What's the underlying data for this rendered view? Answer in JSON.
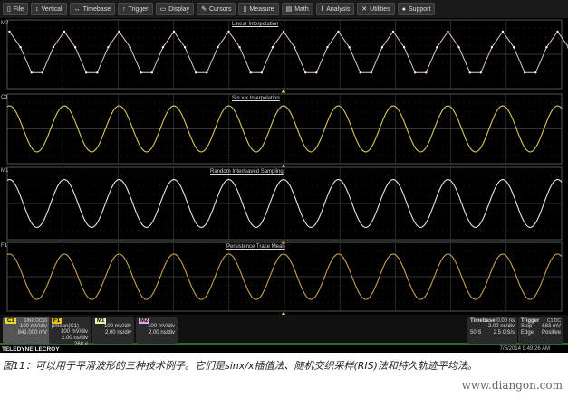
{
  "menu": [
    {
      "label": "File",
      "icon": "file-icon"
    },
    {
      "label": "Vertical",
      "icon": "vertical-icon"
    },
    {
      "label": "Timebase",
      "icon": "timebase-icon"
    },
    {
      "label": "Trigger",
      "icon": "trigger-icon"
    },
    {
      "label": "Display",
      "icon": "display-icon"
    },
    {
      "label": "Cursors",
      "icon": "cursors-icon"
    },
    {
      "label": "Measure",
      "icon": "measure-icon"
    },
    {
      "label": "Math",
      "icon": "math-icon"
    },
    {
      "label": "Analysis",
      "icon": "analysis-icon"
    },
    {
      "label": "Utilities",
      "icon": "utilities-icon"
    },
    {
      "label": "Support",
      "icon": "support-icon"
    }
  ],
  "traces": [
    {
      "tag": "M2",
      "title": "Linear Interpolation",
      "color": "#e6c8d8",
      "kind": "linear"
    },
    {
      "tag": "C1",
      "title": "Sin x/x Interpolation",
      "color": "#d8c860",
      "kind": "sine"
    },
    {
      "tag": "M1",
      "title": "Random Interleaved Sampling",
      "color": "#e8e8d8",
      "kind": "sine"
    },
    {
      "tag": "F1",
      "title": "Persistence Trace Mean",
      "color": "#c8a050",
      "kind": "sine"
    }
  ],
  "channels": {
    "c1": {
      "badge": "C1",
      "coupling": "SINX DC50",
      "vdiv": "100 mV/div",
      "offset": "841.000 mV",
      "color": "#e8d830"
    },
    "f1": {
      "badge": "F1",
      "func": "pmean(C1)",
      "vdiv": "100 mV/div",
      "tdiv": "2.00 ns/div",
      "count": "268 #",
      "color": "#e8c020"
    },
    "m1": {
      "badge": "M1",
      "vdiv": "100 mV/div",
      "tdiv": "2.00 ns/div",
      "color": "#f0f0b0"
    },
    "m2": {
      "badge": "M2",
      "vdiv": "100 mV/div",
      "tdiv": "2.00 ns/div",
      "color": "#e8a8e0"
    }
  },
  "timebase": {
    "label": "Timebase",
    "delay": "0.00 ns",
    "tdiv": "2.00 ns/div",
    "samples": "50 S",
    "rate": "2.5 GS/s"
  },
  "trigger": {
    "label": "Trigger",
    "source": "C1 DC",
    "mode": "Stop",
    "level": "-683 mV",
    "type": "Edge",
    "slope": "Positive"
  },
  "brand": "TELEDYNE LECROY",
  "datetime": "7/5/2014 9:49:26 AM",
  "caption": "图11：可以用于平滑波形的三种技术例子。它们是sinx/x插值法、随机交织采样(RIS)法和持久轨迹平均法。",
  "watermark": "www.diangon.com"
}
